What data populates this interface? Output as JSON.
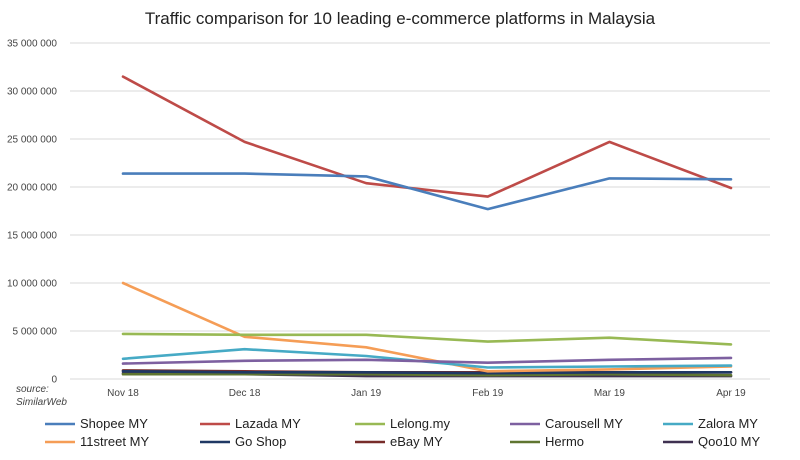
{
  "chart_data": {
    "type": "line",
    "title": "Traffic comparison for 10 leading e-commerce platforms in Malaysia",
    "xlabel": "",
    "ylabel": "",
    "categories": [
      "Nov 18",
      "Dec 18",
      "Jan 19",
      "Feb 19",
      "Mar 19",
      "Apr 19"
    ],
    "ylim": [
      0,
      35000000
    ],
    "yticks": [
      0,
      5000000,
      10000000,
      15000000,
      20000000,
      25000000,
      30000000,
      35000000
    ],
    "ytick_labels": [
      "0",
      "5 000 000",
      "10 000 000",
      "15 000 000",
      "20 000 000",
      "25 000 000",
      "30 000 000",
      "35 000 000"
    ],
    "grid": true,
    "legend_position": "bottom",
    "source_label": "source:",
    "source_name": "SimilarWeb",
    "series": [
      {
        "name": "Shopee MY",
        "color": "#4a7ebb",
        "values": [
          21400000,
          21400000,
          21100000,
          17700000,
          20900000,
          20800000
        ]
      },
      {
        "name": "Lazada MY",
        "color": "#be4b48",
        "values": [
          31500000,
          24700000,
          20400000,
          19000000,
          24700000,
          19900000
        ]
      },
      {
        "name": "Lelong.my",
        "color": "#98b954",
        "values": [
          4700000,
          4600000,
          4600000,
          3900000,
          4300000,
          3600000
        ]
      },
      {
        "name": "Carousell MY",
        "color": "#7d60a0",
        "values": [
          1600000,
          1900000,
          2000000,
          1700000,
          2000000,
          2200000
        ]
      },
      {
        "name": "Zalora MY",
        "color": "#46aac5",
        "values": [
          2100000,
          3100000,
          2400000,
          1200000,
          1300000,
          1400000
        ]
      },
      {
        "name": "11street MY",
        "color": "#f59d56",
        "values": [
          10000000,
          4400000,
          3300000,
          800000,
          1000000,
          1300000
        ]
      },
      {
        "name": "Go Shop",
        "color": "#1f3864",
        "values": [
          800000,
          700000,
          700000,
          600000,
          700000,
          700000
        ]
      },
      {
        "name": "eBay MY",
        "color": "#772c2a",
        "values": [
          900000,
          800000,
          700000,
          700000,
          700000,
          700000
        ]
      },
      {
        "name": "Hermo",
        "color": "#5f7530",
        "values": [
          500000,
          500000,
          500000,
          400000,
          500000,
          400000
        ]
      },
      {
        "name": "Qoo10 MY",
        "color": "#3f3151",
        "values": [
          600000,
          500000,
          300000,
          300000,
          300000,
          300000
        ]
      }
    ]
  }
}
